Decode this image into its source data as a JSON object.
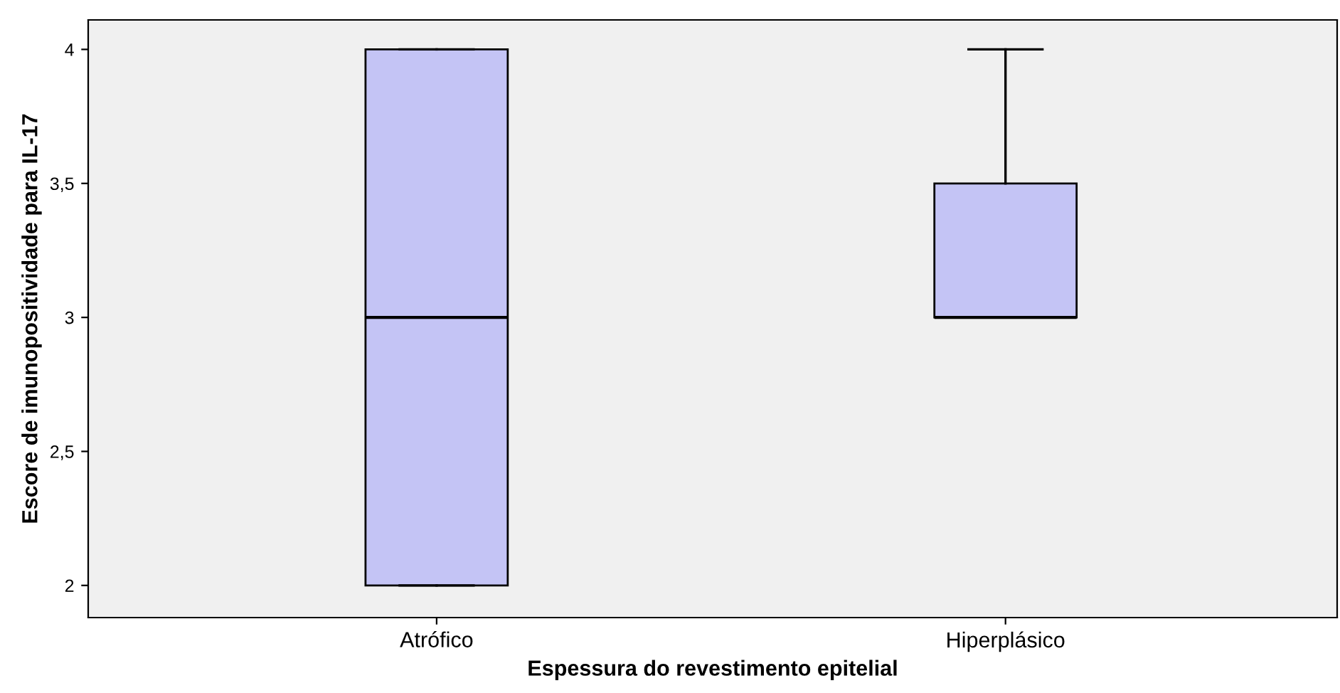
{
  "chart_data": {
    "type": "box",
    "xlabel": "Espessura do revestimento epitelial",
    "ylabel": "Escore de imunopositividade para IL-17",
    "categories": [
      "Atrófico",
      "Hiperplásico"
    ],
    "boxes": [
      {
        "low": 2,
        "q1": 2,
        "median": 3,
        "q3": 4,
        "high": 4
      },
      {
        "low": 3,
        "q1": 3,
        "median": 3,
        "q3": 3.5,
        "high": 4
      }
    ],
    "color": "#c4c4f5",
    "ylim": [
      1.88,
      4.11
    ],
    "yticks": [
      2,
      {
        "value": 2.5,
        "label": "2,5"
      },
      3,
      {
        "value": 3.5,
        "label": "3,5"
      },
      4
    ],
    "grid": false
  }
}
